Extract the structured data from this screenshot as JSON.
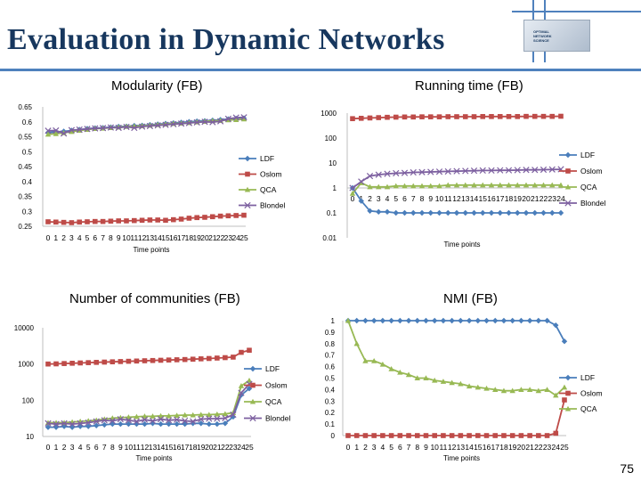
{
  "slide": {
    "title": "Evaluation in Dynamic Networks",
    "page_number": "75",
    "logo_lines": [
      "OPTIMAL",
      "NETWORK",
      "SCIENCE"
    ],
    "accent_color": "#4f81bd",
    "title_color": "#17375e"
  },
  "series_style": [
    {
      "name": "LDF",
      "color": "#4a7ebb",
      "marker": "diamond"
    },
    {
      "name": "Oslom",
      "color": "#be4b48",
      "marker": "square"
    },
    {
      "name": "QCA",
      "color": "#98b954",
      "marker": "triangle"
    },
    {
      "name": "Blondel",
      "color": "#7d60a0",
      "marker": "x"
    }
  ],
  "chart_data": [
    {
      "type": "line",
      "title": "Modularity (FB)",
      "xlabel": "Time points",
      "ylabel": "",
      "scale": "linear",
      "ylim": [
        0.25,
        0.65
      ],
      "yticks": [
        "0.25",
        "0.3",
        "0.35",
        "0.4",
        "0.45",
        "0.5",
        "0.55",
        "0.6",
        "0.65"
      ],
      "x": [
        0,
        1,
        2,
        3,
        4,
        5,
        6,
        7,
        8,
        9,
        10,
        11,
        12,
        13,
        14,
        15,
        16,
        17,
        18,
        19,
        20,
        21,
        22,
        23,
        24,
        25
      ],
      "legend": [
        "LDF",
        "Oslom",
        "QCA",
        "Blondel"
      ],
      "series": [
        {
          "name": "LDF",
          "values": [
            0.564,
            0.566,
            0.568,
            0.571,
            0.574,
            0.577,
            0.579,
            0.58,
            0.582,
            0.584,
            0.585,
            0.587,
            0.588,
            0.59,
            0.592,
            0.594,
            0.596,
            0.598,
            0.6,
            0.602,
            0.603,
            0.605,
            0.607,
            0.609,
            0.611,
            0.612
          ]
        },
        {
          "name": "Oslom",
          "values": [
            0.265,
            0.264,
            0.263,
            0.262,
            0.264,
            0.265,
            0.266,
            0.266,
            0.267,
            0.268,
            0.268,
            0.269,
            0.27,
            0.271,
            0.271,
            0.27,
            0.272,
            0.274,
            0.277,
            0.279,
            0.28,
            0.282,
            0.284,
            0.285,
            0.286,
            0.287
          ]
        },
        {
          "name": "QCA",
          "values": [
            0.558,
            0.56,
            0.563,
            0.567,
            0.571,
            0.574,
            0.577,
            0.578,
            0.58,
            0.582,
            0.584,
            0.585,
            0.586,
            0.588,
            0.59,
            0.592,
            0.594,
            0.595,
            0.597,
            0.599,
            0.601,
            0.603,
            0.604,
            0.606,
            0.607,
            0.609
          ]
        },
        {
          "name": "Blondel",
          "values": [
            0.57,
            0.571,
            0.561,
            0.572,
            0.574,
            0.576,
            0.578,
            0.579,
            0.581,
            0.58,
            0.583,
            0.58,
            0.584,
            0.586,
            0.588,
            0.59,
            0.592,
            0.594,
            0.596,
            0.598,
            0.6,
            0.599,
            0.602,
            0.61,
            0.614,
            0.615
          ]
        }
      ]
    },
    {
      "type": "line",
      "title": "Running time (FB)",
      "xlabel": "Time points",
      "ylabel": "",
      "scale": "log",
      "ylim": [
        0.01,
        1000
      ],
      "yticks": [
        "0.01",
        "0.1",
        "1",
        "10",
        "100",
        "1000"
      ],
      "x": [
        0,
        1,
        2,
        3,
        4,
        5,
        6,
        7,
        8,
        9,
        10,
        11,
        12,
        13,
        14,
        15,
        16,
        17,
        18,
        19,
        20,
        21,
        22,
        23,
        24
      ],
      "legend": [
        "LDF",
        "Oslom",
        "QCA",
        "Blondel"
      ],
      "series": [
        {
          "name": "LDF",
          "values": [
            1.0,
            0.3,
            0.12,
            0.11,
            0.11,
            0.1,
            0.1,
            0.1,
            0.1,
            0.1,
            0.1,
            0.1,
            0.1,
            0.1,
            0.1,
            0.1,
            0.1,
            0.1,
            0.1,
            0.1,
            0.1,
            0.1,
            0.1,
            0.1,
            0.1
          ]
        },
        {
          "name": "Oslom",
          "values": [
            600,
            620,
            640,
            660,
            680,
            690,
            700,
            700,
            710,
            710,
            710,
            720,
            720,
            720,
            720,
            730,
            730,
            730,
            730,
            730,
            740,
            740,
            740,
            740,
            750
          ]
        },
        {
          "name": "QCA",
          "values": [
            0.6,
            1.6,
            1.1,
            1.1,
            1.1,
            1.2,
            1.2,
            1.2,
            1.2,
            1.2,
            1.2,
            1.3,
            1.3,
            1.3,
            1.3,
            1.3,
            1.3,
            1.3,
            1.3,
            1.3,
            1.3,
            1.3,
            1.3,
            1.3,
            1.3
          ]
        },
        {
          "name": "Blondel",
          "values": [
            1.0,
            1.8,
            3.0,
            3.4,
            3.7,
            3.9,
            4.0,
            4.2,
            4.3,
            4.4,
            4.5,
            4.6,
            4.7,
            4.8,
            4.9,
            5.0,
            5.0,
            5.1,
            5.1,
            5.2,
            5.3,
            5.3,
            5.4,
            5.5,
            5.6
          ]
        }
      ]
    },
    {
      "type": "line",
      "title": "Number of communities (FB)",
      "xlabel": "Time points",
      "ylabel": "",
      "scale": "log",
      "ylim": [
        10,
        10000
      ],
      "yticks": [
        "10",
        "100",
        "1000",
        "10000"
      ],
      "x": [
        0,
        1,
        2,
        3,
        4,
        5,
        6,
        7,
        8,
        9,
        10,
        11,
        12,
        13,
        14,
        15,
        16,
        17,
        18,
        19,
        20,
        21,
        22,
        23,
        24,
        25
      ],
      "legend": [
        "LDF",
        "Oslom",
        "QCA",
        "Blondel"
      ],
      "series": [
        {
          "name": "LDF",
          "values": [
            18,
            18,
            19,
            18,
            19,
            19,
            20,
            21,
            22,
            22,
            22,
            22,
            22,
            23,
            22,
            22,
            22,
            22,
            23,
            23,
            22,
            22,
            23,
            35,
            140,
            210
          ]
        },
        {
          "name": "Oslom",
          "values": [
            1000,
            1010,
            1030,
            1050,
            1070,
            1090,
            1110,
            1130,
            1150,
            1170,
            1190,
            1210,
            1230,
            1250,
            1270,
            1290,
            1310,
            1330,
            1360,
            1390,
            1420,
            1460,
            1500,
            1550,
            2100,
            2400
          ]
        },
        {
          "name": "QCA",
          "values": [
            24,
            24,
            24,
            25,
            26,
            27,
            28,
            30,
            32,
            33,
            34,
            35,
            36,
            36,
            37,
            37,
            38,
            39,
            39,
            40,
            40,
            41,
            42,
            45,
            250,
            350
          ]
        },
        {
          "name": "Blondel",
          "values": [
            23,
            22,
            23,
            22,
            23,
            24,
            26,
            28,
            27,
            30,
            28,
            26,
            29,
            27,
            30,
            28,
            29,
            27,
            26,
            30,
            31,
            31,
            32,
            40,
            160,
            280
          ]
        }
      ]
    },
    {
      "type": "line",
      "title": "NMI (FB)",
      "xlabel": "Time points",
      "ylabel": "",
      "scale": "linear",
      "ylim": [
        0,
        1
      ],
      "yticks": [
        "0",
        "0.1",
        "0.2",
        "0.3",
        "0.4",
        "0.5",
        "0.6",
        "0.7",
        "0.8",
        "0.9",
        "1"
      ],
      "x": [
        0,
        1,
        2,
        3,
        4,
        5,
        6,
        7,
        8,
        9,
        10,
        11,
        12,
        13,
        14,
        15,
        16,
        17,
        18,
        19,
        20,
        21,
        22,
        23,
        24,
        25
      ],
      "legend": [
        "LDF",
        "Oslom",
        "QCA"
      ],
      "series": [
        {
          "name": "LDF",
          "values": [
            1,
            1,
            1,
            1,
            1,
            1,
            1,
            1,
            1,
            1,
            1,
            1,
            1,
            1,
            1,
            1,
            1,
            1,
            1,
            1,
            1,
            1,
            1,
            1,
            0.96,
            0.82
          ]
        },
        {
          "name": "Oslom",
          "values": [
            0,
            0,
            0,
            0,
            0,
            0,
            0,
            0,
            0,
            0,
            0,
            0,
            0,
            0,
            0,
            0,
            0,
            0,
            0,
            0,
            0,
            0,
            0,
            0,
            0.02,
            0.31
          ]
        },
        {
          "name": "QCA",
          "values": [
            1,
            0.8,
            0.65,
            0.65,
            0.62,
            0.58,
            0.55,
            0.53,
            0.5,
            0.5,
            0.48,
            0.47,
            0.46,
            0.45,
            0.43,
            0.42,
            0.41,
            0.4,
            0.39,
            0.39,
            0.4,
            0.4,
            0.39,
            0.4,
            0.35,
            0.42
          ]
        }
      ]
    }
  ]
}
